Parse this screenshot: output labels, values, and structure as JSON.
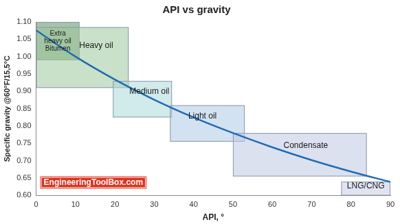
{
  "chart_data": {
    "type": "line",
    "title": "API vs gravity",
    "x_label": "API, °",
    "y_label": "Specific gravity @60°F/15,5°C",
    "x": [
      0,
      10,
      20,
      30,
      40,
      50,
      60,
      70,
      80,
      90
    ],
    "series": [
      {
        "name": "Specific gravity",
        "color": "#1f6db5",
        "line_style": "solid",
        "marker": "none",
        "values": [
          1.076,
          1.0,
          0.934,
          0.876,
          0.825,
          0.78,
          0.739,
          0.702,
          0.669,
          0.639
        ]
      }
    ],
    "regions": [
      {
        "label": [
          "Extra",
          "heavy oil",
          "Bitumen"
        ],
        "x": [
          0,
          11
        ],
        "y": [
          0.99,
          1.1
        ],
        "color": "#5f8f5f"
      },
      {
        "label": "Heavy oil",
        "x": [
          0,
          23.5
        ],
        "y": [
          0.91,
          1.085
        ],
        "color": "#9cc89c"
      },
      {
        "label": "Medium oil",
        "x": [
          19.5,
          34.5
        ],
        "y": [
          0.825,
          0.93
        ],
        "color": "#acd9d9"
      },
      {
        "label": "Light oil",
        "x": [
          34,
          53
        ],
        "y": [
          0.755,
          0.86
        ],
        "color": "#aecbe3"
      },
      {
        "label": "Condensate",
        "x": [
          50,
          84
        ],
        "y": [
          0.655,
          0.78
        ],
        "color": "#bfc8e3"
      },
      {
        "label": "LNG/CNG",
        "x": [
          77.5,
          90
        ],
        "y": [
          0.6,
          0.64
        ],
        "color": "#c7cde8"
      }
    ],
    "annotations": [
      "EngineeringToolBox.com"
    ],
    "xlim": [
      0,
      90
    ],
    "xticks": [
      0,
      10,
      20,
      30,
      40,
      50,
      60,
      70,
      80,
      90
    ],
    "ylim": [
      0.6,
      1.1
    ],
    "yticks": [
      {
        "value": 0.6,
        "label": "0.60"
      },
      {
        "value": 0.65,
        "label": "0.65"
      },
      {
        "value": 0.7,
        "label": "0.70"
      },
      {
        "value": 0.75,
        "label": "0.75"
      },
      {
        "value": 0.8,
        "label": "0.80"
      },
      {
        "value": 0.85,
        "label": "0.85"
      },
      {
        "value": 0.9,
        "label": "0.90"
      },
      {
        "value": 0.95,
        "label": "0.95"
      },
      {
        "value": 1.0,
        "label": "1.00"
      },
      {
        "value": 1.05,
        "label": "1.05"
      },
      {
        "value": 1.1,
        "label": "1.10"
      }
    ],
    "grid": false
  }
}
